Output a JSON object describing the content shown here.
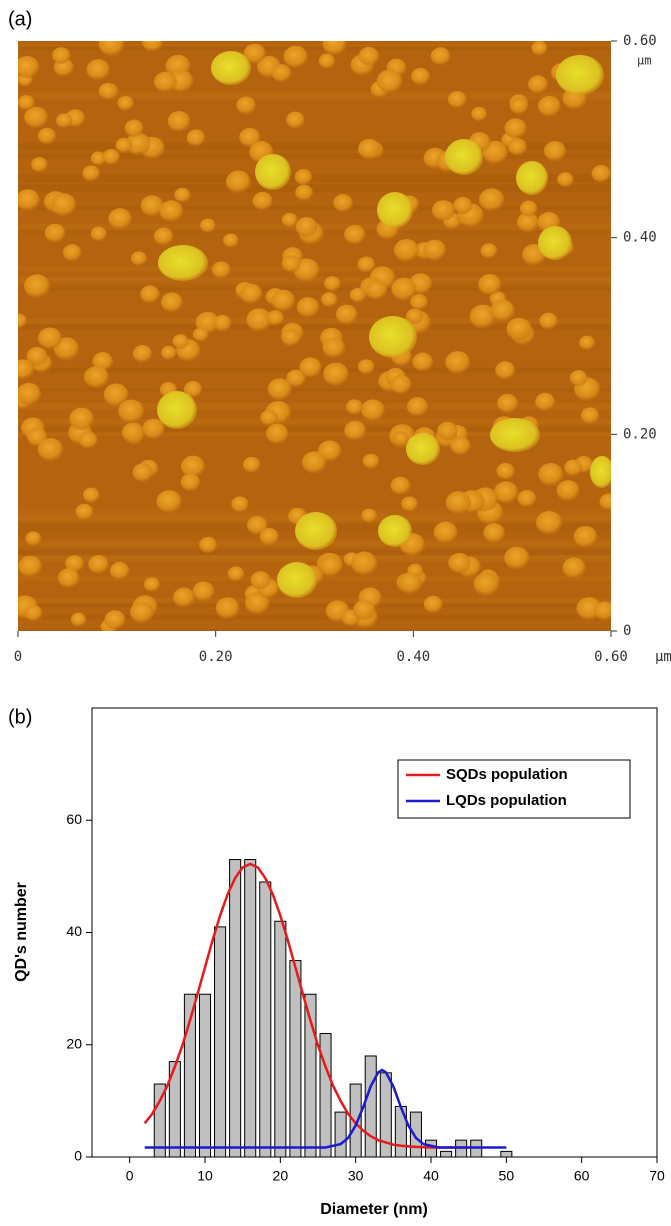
{
  "chart_data": [
    {
      "type": "image",
      "label": "(a)",
      "unit": "μm",
      "xlim": [
        0,
        0.6
      ],
      "xticks": [
        0,
        {
          "value": 0.2,
          "label": "0.20"
        },
        {
          "value": 0.4,
          "label": "0.40"
        },
        {
          "value": 0.6,
          "label": "0.60"
        }
      ],
      "ylim": [
        0,
        0.6
      ],
      "yticks": [
        0,
        {
          "value": 0.2,
          "label": "0.20"
        },
        {
          "value": 0.4,
          "label": "0.40"
        },
        {
          "value": 0.6,
          "label": "0.60"
        }
      ]
    },
    {
      "type": "histogram",
      "label": "(b)",
      "x_label": "Diameter (nm)",
      "y_label": "QD's number",
      "color": "#c0c0c0",
      "bins": [
        3,
        5,
        7,
        9,
        11,
        13,
        15,
        17,
        19,
        21,
        23,
        25,
        27,
        29,
        31,
        33,
        35,
        37,
        39,
        41,
        43,
        45,
        47,
        49,
        51
      ],
      "values": [
        13,
        17,
        29,
        29,
        41,
        53,
        53,
        49,
        42,
        35,
        29,
        22,
        8,
        13,
        18,
        15,
        9,
        8,
        3,
        1,
        3,
        3,
        0,
        1
      ],
      "series": [
        {
          "name": "SQDs population",
          "color": "#e8191e",
          "x": [
            2,
            3,
            4,
            5,
            6,
            7,
            8,
            9,
            10,
            11,
            12,
            13,
            14,
            15,
            16,
            17,
            18,
            19,
            20,
            21,
            22,
            23,
            24,
            25,
            26,
            27,
            28,
            29,
            30,
            31,
            32,
            33,
            34,
            35,
            36,
            37,
            38,
            40,
            42,
            45
          ],
          "values": [
            6.0,
            7.7,
            10.0,
            12.7,
            16.1,
            19.9,
            24.3,
            29.0,
            33.8,
            38.6,
            43.0,
            46.8,
            49.7,
            51.6,
            52.2,
            51.6,
            49.7,
            46.8,
            43.0,
            38.6,
            33.8,
            29.0,
            24.3,
            19.9,
            16.1,
            12.7,
            10.0,
            7.7,
            6.0,
            4.7,
            3.7,
            3.0,
            2.6,
            2.2,
            2.0,
            1.9,
            1.8,
            1.7,
            1.7,
            1.7
          ]
        },
        {
          "name": "LQDs population",
          "color": "#1a1ad0",
          "x": [
            2,
            26,
            28,
            29,
            30,
            31,
            32,
            33,
            33.5,
            34,
            35,
            36,
            37,
            38,
            39,
            41,
            50
          ],
          "values": [
            1.7,
            1.7,
            2.3,
            3.4,
            5.6,
            8.9,
            12.6,
            15.1,
            15.5,
            15.1,
            12.6,
            8.9,
            5.6,
            3.4,
            2.3,
            1.7,
            1.7
          ]
        }
      ],
      "xlim": [
        -5,
        70
      ],
      "xticks": [
        0,
        10,
        20,
        30,
        40,
        50,
        60,
        70
      ],
      "ylim": [
        0,
        80
      ],
      "yticks": [
        0,
        20,
        40,
        60
      ],
      "legend": "upper right"
    }
  ]
}
